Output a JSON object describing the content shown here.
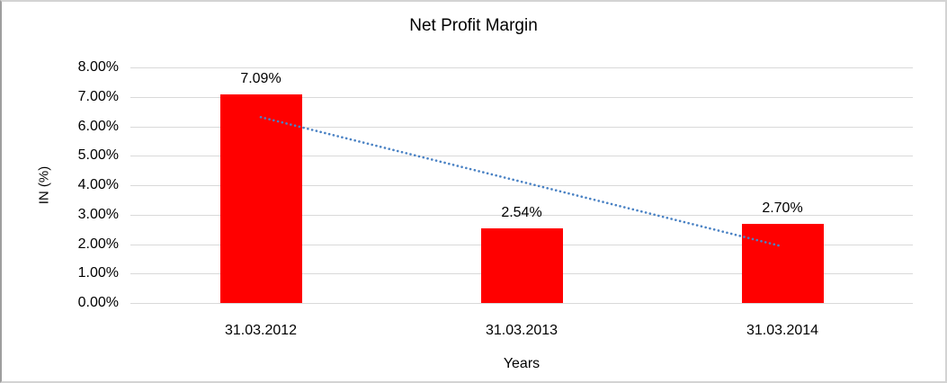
{
  "frame": {
    "background": "#ffffff",
    "border_color": "#d3d3d3"
  },
  "chart_data": {
    "type": "bar",
    "title": "Net Profit Margin",
    "xlabel": "Years",
    "ylabel": "IN (%)",
    "categories": [
      "31.03.2012",
      "31.03.2013",
      "31.03.2014"
    ],
    "values": [
      7.09,
      2.54,
      2.7
    ],
    "value_labels": [
      "7.09%",
      "2.54%",
      "2.70%"
    ],
    "ylim": [
      0,
      8
    ],
    "ytick_step": 1,
    "ytick_labels": [
      "0.00%",
      "1.00%",
      "2.00%",
      "3.00%",
      "4.00%",
      "5.00%",
      "6.00%",
      "7.00%",
      "8.00%"
    ],
    "grid": true,
    "gridline_color": "#d9d9d9",
    "legend": "none",
    "bar_color": "#ff0000",
    "text_color": "#000000",
    "trendline": {
      "type": "linear",
      "style": "dotted",
      "color": "#4a82c4",
      "start_value": 6.31,
      "end_value": 1.92
    }
  }
}
